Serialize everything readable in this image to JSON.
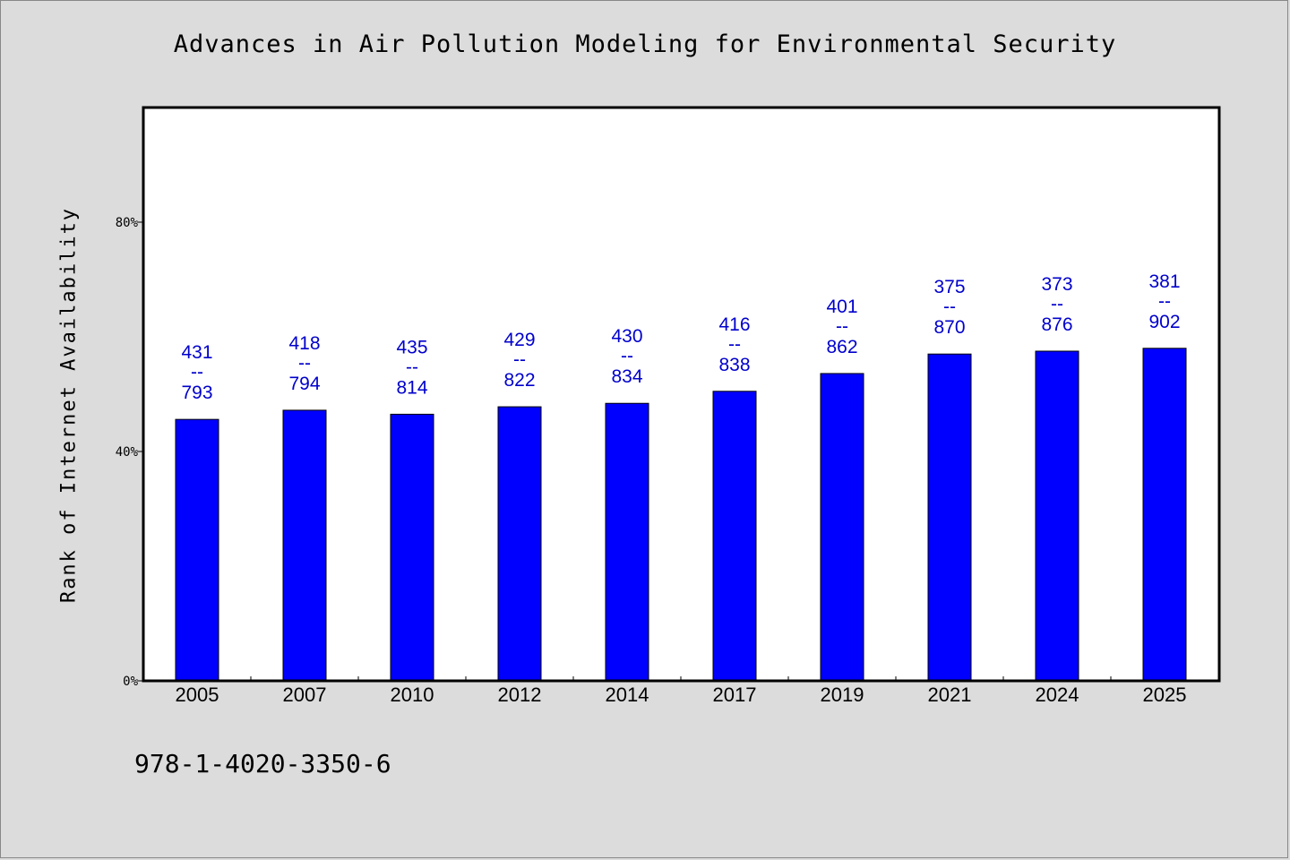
{
  "chart_data": {
    "type": "bar",
    "title": "Advances in Air Pollution Modeling for Environmental Security",
    "ylabel": "Rank of Internet Availability",
    "xlabel": "",
    "categories": [
      "2005",
      "2007",
      "2010",
      "2012",
      "2014",
      "2017",
      "2019",
      "2021",
      "2024",
      "2025"
    ],
    "values": [
      45.6,
      47.2,
      46.5,
      47.8,
      48.4,
      50.5,
      53.6,
      57.0,
      57.5,
      58.0
    ],
    "bar_labels": [
      {
        "top": "431",
        "sep": "--",
        "bottom": "793"
      },
      {
        "top": "418",
        "sep": "--",
        "bottom": "794"
      },
      {
        "top": "435",
        "sep": "--",
        "bottom": "814"
      },
      {
        "top": "429",
        "sep": "--",
        "bottom": "822"
      },
      {
        "top": "430",
        "sep": "--",
        "bottom": "834"
      },
      {
        "top": "416",
        "sep": "--",
        "bottom": "838"
      },
      {
        "top": "401",
        "sep": "--",
        "bottom": "862"
      },
      {
        "top": "375",
        "sep": "--",
        "bottom": "870"
      },
      {
        "top": "373",
        "sep": "--",
        "bottom": "876"
      },
      {
        "top": "381",
        "sep": "--",
        "bottom": "902"
      }
    ],
    "ylim": [
      0,
      100
    ],
    "yticks": [
      0,
      40,
      80
    ],
    "ytick_labels": [
      "0%",
      "40%",
      "80%"
    ],
    "grid": false,
    "bar_color": "#0000ff",
    "label_color": "#0000cc"
  },
  "footer": {
    "code": "978-1-4020-3350-6"
  }
}
